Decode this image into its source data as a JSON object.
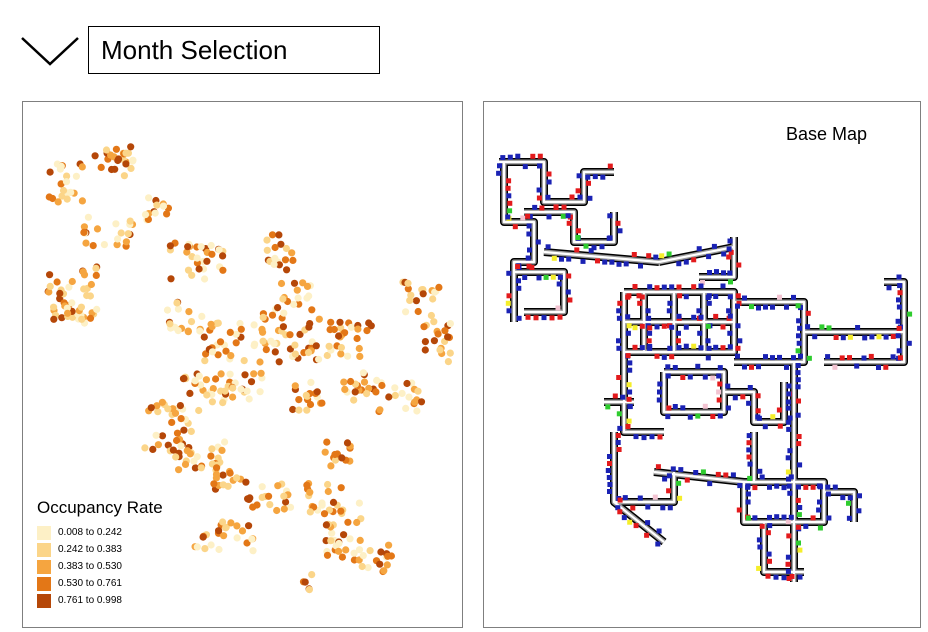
{
  "header": {
    "toggle_icon": "chevron-down-icon",
    "month_selection_label": "Month Selection"
  },
  "occupancy_map": {
    "legend": {
      "title": "Occupancy Rate",
      "items": [
        {
          "label": "0.008 to 0.242",
          "color": "#fdf0c6"
        },
        {
          "label": "0.242 to 0.383",
          "color": "#fbd589"
        },
        {
          "label": "0.383 to 0.530",
          "color": "#f5a540"
        },
        {
          "label": "0.530 to 0.761",
          "color": "#e37717"
        },
        {
          "label": "0.761 to 0.998",
          "color": "#b54708"
        }
      ]
    }
  },
  "base_map": {
    "title": "Base Map",
    "colors": {
      "network": "#ffffff",
      "blue": "#1a22b4",
      "red": "#e31a1c",
      "green": "#2ecc2e",
      "yellow": "#f5ee2a",
      "pink": "#f3c4d2"
    }
  }
}
